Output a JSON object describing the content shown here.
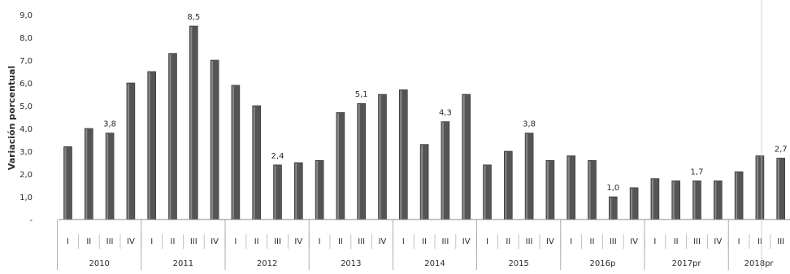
{
  "chart_data": {
    "type": "bar",
    "ylabel": "Variación porcentual",
    "ylim": [
      0,
      9
    ],
    "yticks": [
      "-",
      "1,0",
      "2,0",
      "3,0",
      "4,0",
      "5,0",
      "6,0",
      "7,0",
      "8,0",
      "9,0"
    ],
    "grid": false,
    "bar_color": "#555555",
    "years": [
      {
        "label": "2010",
        "quarters": [
          "I",
          "II",
          "III",
          "IV"
        ]
      },
      {
        "label": "2011",
        "quarters": [
          "I",
          "II",
          "III",
          "IV"
        ]
      },
      {
        "label": "2012",
        "quarters": [
          "I",
          "II",
          "III",
          "IV"
        ]
      },
      {
        "label": "2013",
        "quarters": [
          "I",
          "II",
          "III",
          "IV"
        ]
      },
      {
        "label": "2014",
        "quarters": [
          "I",
          "II",
          "III",
          "IV"
        ]
      },
      {
        "label": "2015",
        "quarters": [
          "I",
          "II",
          "III",
          "IV"
        ]
      },
      {
        "label": "2016p",
        "quarters": [
          "I",
          "II",
          "III",
          "IV"
        ]
      },
      {
        "label": "2017pr",
        "quarters": [
          "I",
          "II",
          "III",
          "IV"
        ]
      },
      {
        "label": "2018pr",
        "quarters": [
          "I",
          "II",
          "III"
        ]
      }
    ],
    "values": [
      3.2,
      4.0,
      3.8,
      6.0,
      6.5,
      7.3,
      8.5,
      7.0,
      5.9,
      5.0,
      2.4,
      2.5,
      2.6,
      4.7,
      5.1,
      5.5,
      5.7,
      3.3,
      4.3,
      5.5,
      2.4,
      3.0,
      3.8,
      2.6,
      2.8,
      2.6,
      1.0,
      1.4,
      1.8,
      1.7,
      1.7,
      1.7,
      2.1,
      2.8,
      2.7
    ],
    "data_labels": [
      {
        "index": 2,
        "text": "3,8"
      },
      {
        "index": 6,
        "text": "8,5"
      },
      {
        "index": 10,
        "text": "2,4"
      },
      {
        "index": 14,
        "text": "5,1"
      },
      {
        "index": 18,
        "text": "4,3"
      },
      {
        "index": 22,
        "text": "3,8"
      },
      {
        "index": 26,
        "text": "1,0"
      },
      {
        "index": 30,
        "text": "1,7"
      },
      {
        "index": 34,
        "text": "2,7"
      }
    ]
  }
}
